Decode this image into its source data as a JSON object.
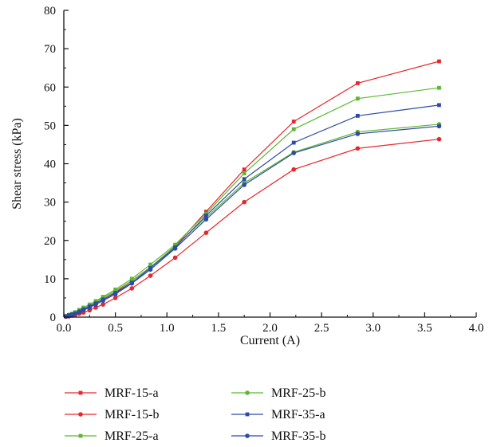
{
  "chart_data": {
    "type": "line",
    "title": "",
    "xlabel": "Current (A)",
    "ylabel": "Shear stress (kPa)",
    "xlim": [
      0.0,
      4.0
    ],
    "ylim": [
      0,
      80
    ],
    "xticks": [
      "0.0",
      "0.5",
      "1.0",
      "1.5",
      "2.0",
      "2.5",
      "3.0",
      "3.5",
      "4.0"
    ],
    "yticks": [
      "0",
      "10",
      "20",
      "30",
      "40",
      "50",
      "60",
      "70",
      "80"
    ],
    "grid": false,
    "legend_position": "bottom",
    "x": [
      0.02,
      0.05,
      0.08,
      0.11,
      0.15,
      0.19,
      0.25,
      0.31,
      0.38,
      0.5,
      0.66,
      0.84,
      1.08,
      1.38,
      1.75,
      2.23,
      2.85,
      3.64
    ],
    "series": [
      {
        "name": "MRF-15-a",
        "color": "#e8262c",
        "marker": "square",
        "values": [
          0.2,
          0.4,
          0.7,
          1.0,
          1.5,
          2.0,
          2.8,
          3.6,
          4.6,
          6.5,
          9.5,
          13.0,
          18.5,
          27.5,
          38.5,
          51.0,
          61.0,
          66.7
        ]
      },
      {
        "name": "MRF-15-b",
        "color": "#e8262c",
        "marker": "circle",
        "values": [
          0.1,
          0.2,
          0.4,
          0.6,
          0.9,
          1.2,
          1.8,
          2.5,
          3.3,
          5.0,
          7.5,
          10.8,
          15.5,
          22.0,
          30.0,
          38.5,
          44.0,
          46.4
        ]
      },
      {
        "name": "MRF-25-a",
        "color": "#5cb82e",
        "marker": "square",
        "values": [
          0.3,
          0.6,
          0.9,
          1.3,
          1.9,
          2.5,
          3.3,
          4.2,
          5.3,
          7.2,
          10.0,
          13.7,
          18.9,
          27.0,
          37.5,
          49.0,
          57.0,
          59.8
        ]
      },
      {
        "name": "MRF-25-b",
        "color": "#5cb82e",
        "marker": "circle",
        "values": [
          0.2,
          0.5,
          0.8,
          1.1,
          1.6,
          2.2,
          3.0,
          3.9,
          5.0,
          6.8,
          9.5,
          13.0,
          18.5,
          26.0,
          35.0,
          43.0,
          48.3,
          50.3
        ]
      },
      {
        "name": "MRF-35-a",
        "color": "#2e4aa8",
        "marker": "square",
        "values": [
          0.2,
          0.5,
          0.7,
          1.0,
          1.5,
          2.0,
          2.8,
          3.6,
          4.6,
          6.3,
          9.0,
          12.8,
          18.2,
          26.5,
          36.0,
          45.5,
          52.5,
          55.3
        ]
      },
      {
        "name": "MRF-35-b",
        "color": "#2e4aa8",
        "marker": "circle",
        "values": [
          0.2,
          0.4,
          0.6,
          0.9,
          1.3,
          1.8,
          2.5,
          3.3,
          4.3,
          6.0,
          8.8,
          12.4,
          17.9,
          25.5,
          34.5,
          42.8,
          47.8,
          49.8
        ]
      }
    ]
  }
}
